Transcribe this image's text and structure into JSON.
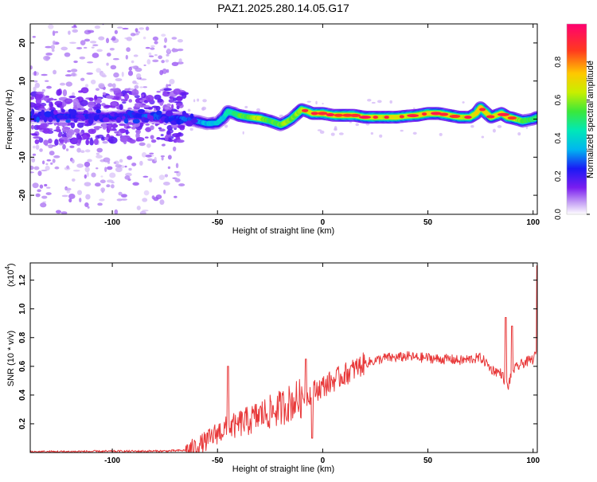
{
  "title": "PAZ1.2025.280.14.05.G17",
  "chart_data": [
    {
      "type": "heatmap",
      "name": "spectrogram",
      "xlabel": "Height of straight line (km)",
      "ylabel": "Frequency (Hz)",
      "xlim": [
        -139,
        102
      ],
      "ylim": [
        -25,
        25
      ],
      "xticks": [
        -100,
        -50,
        0,
        50,
        100
      ],
      "xtick_labels": [
        "-100",
        "-50",
        "0",
        "50",
        "100"
      ],
      "yticks": [
        -20,
        -10,
        0,
        10,
        20
      ],
      "ytick_labels": [
        "-20",
        "-10",
        "0",
        "10",
        "20"
      ],
      "colorbar": {
        "label": "Normalized spectral amplitude",
        "range": [
          0,
          1
        ],
        "ticks": [
          0.0,
          0.2,
          0.4,
          0.6,
          0.8
        ],
        "tick_labels": [
          "0.0",
          "0.2",
          "0.4",
          "0.6",
          "0.8"
        ]
      },
      "ridge": {
        "description_units": "frequency (Hz) of main spectral ridge vs height (km)",
        "x": [
          -139,
          -120,
          -100,
          -90,
          -80,
          -70,
          -65,
          -60,
          -55,
          -50,
          -47,
          -45,
          -42,
          -40,
          -35,
          -30,
          -25,
          -20,
          -18,
          -15,
          -12,
          -10,
          -7,
          -5,
          0,
          5,
          10,
          15,
          20,
          25,
          30,
          35,
          40,
          45,
          50,
          55,
          60,
          65,
          70,
          73,
          75,
          78,
          80,
          85,
          88,
          90,
          95,
          100,
          102
        ],
        "freq": [
          0.5,
          0.8,
          0.5,
          1.0,
          0.5,
          0.3,
          0.0,
          -0.5,
          -1.2,
          -1.0,
          0.5,
          2.0,
          1.5,
          1.0,
          0.5,
          0.2,
          -0.5,
          -1.5,
          -1.0,
          0.0,
          1.5,
          2.5,
          2.0,
          1.5,
          1.5,
          1.0,
          1.0,
          1.0,
          0.5,
          0.5,
          0.5,
          0.5,
          0.8,
          1.0,
          1.5,
          1.5,
          1.0,
          0.5,
          0.5,
          1.5,
          3.0,
          1.5,
          0.5,
          1.5,
          0.5,
          0.3,
          -0.5,
          0.0,
          0.5
        ],
        "amplitude": [
          0.25,
          0.3,
          0.3,
          0.3,
          0.35,
          0.3,
          0.35,
          0.4,
          0.45,
          0.45,
          0.5,
          0.55,
          0.6,
          0.65,
          0.7,
          0.8,
          0.65,
          0.7,
          0.75,
          0.7,
          0.75,
          0.8,
          0.8,
          0.85,
          0.9,
          0.85,
          0.9,
          0.85,
          0.8,
          0.85,
          0.8,
          0.85,
          0.8,
          0.85,
          0.9,
          0.85,
          0.85,
          0.8,
          0.8,
          0.85,
          0.9,
          0.85,
          0.8,
          0.85,
          0.9,
          0.85,
          0.7,
          0.6,
          0.6
        ]
      }
    },
    {
      "type": "line",
      "name": "snr",
      "xlabel": "Height of straight line (km)",
      "ylabel": "SNR (10 * v/v)",
      "y_scale_label": "(x10",
      "y_scale_exp": "4",
      "y_scale_suffix": ")",
      "xlim": [
        -139,
        102
      ],
      "ylim": [
        0,
        1.32
      ],
      "xticks": [
        -100,
        -50,
        0,
        50,
        100
      ],
      "xtick_labels": [
        "-100",
        "-50",
        "0",
        "50",
        "100"
      ],
      "yticks": [
        0.2,
        0.4,
        0.6,
        0.8,
        1.0,
        1.2
      ],
      "ytick_labels": [
        "0.2",
        "0.4",
        "0.6",
        "0.8",
        "1.0",
        "1.2"
      ],
      "color": "#e8393a",
      "anchors": {
        "x": [
          -139,
          -75,
          -65,
          -60,
          -55,
          -50,
          -45,
          -40,
          -35,
          -30,
          -25,
          -20,
          -15,
          -10,
          -5,
          0,
          5,
          10,
          15,
          20,
          25,
          30,
          35,
          40,
          45,
          50,
          55,
          60,
          65,
          70,
          75,
          78,
          80,
          85,
          88,
          90,
          95,
          100,
          102
        ],
        "y": [
          0.005,
          0.01,
          0.015,
          0.04,
          0.08,
          0.14,
          0.17,
          0.2,
          0.22,
          0.26,
          0.28,
          0.31,
          0.35,
          0.38,
          0.42,
          0.46,
          0.5,
          0.54,
          0.58,
          0.62,
          0.64,
          0.66,
          0.66,
          0.67,
          0.66,
          0.66,
          0.65,
          0.65,
          0.64,
          0.65,
          0.66,
          0.62,
          0.58,
          0.55,
          0.45,
          0.57,
          0.62,
          0.65,
          0.7
        ]
      },
      "spikes": {
        "x": [
          -45,
          -41,
          -8,
          -5,
          87,
          90,
          102
        ],
        "y": [
          0.6,
          0.2,
          0.65,
          0.1,
          0.94,
          0.88,
          1.3
        ]
      }
    }
  ]
}
